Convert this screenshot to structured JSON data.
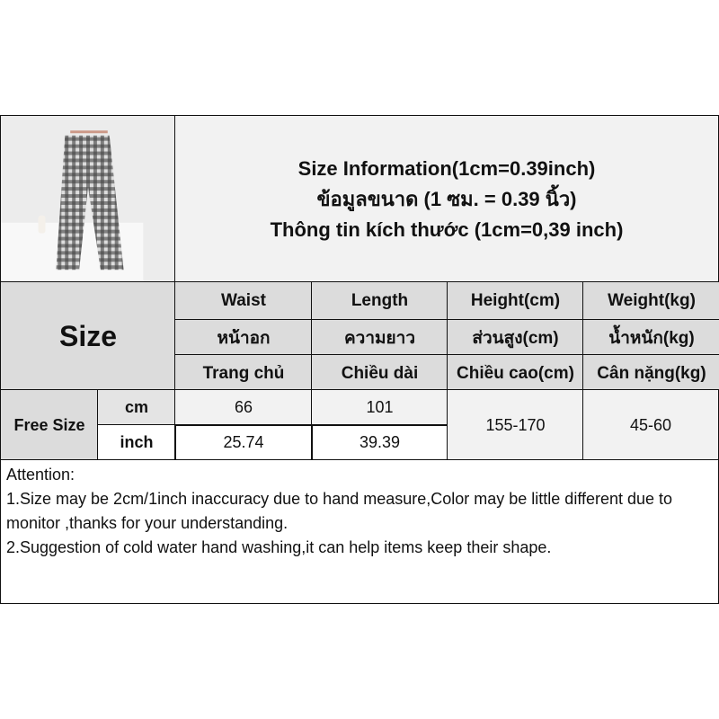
{
  "title": {
    "line1": "Size Information(1cm=0.39inch)",
    "line2": "ข้อมูลขนาด (1 ซม. = 0.39 นิ้ว)",
    "line3": "Thông tin kích thước (1cm=0,39 inch)"
  },
  "table": {
    "size_label": "Size",
    "columns": [
      {
        "en": "Waist",
        "th": "หน้าอก",
        "vi": "Trang chủ"
      },
      {
        "en": "Length",
        "th": "ความยาว",
        "vi": "Chiều dài"
      },
      {
        "en": "Height(cm)",
        "th": "ส่วนสูง(cm)",
        "vi": "Chiều cao(cm)"
      },
      {
        "en": "Weight(kg)",
        "th": "น้ำหนัก(kg)",
        "vi": "Cân nặng(kg)"
      }
    ],
    "row": {
      "size": "Free Size",
      "unit_cm": "cm",
      "unit_inch": "inch",
      "waist_cm": "66",
      "length_cm": "101",
      "waist_inch": "25.74",
      "length_inch": "39.39",
      "height": "155-170",
      "weight": "45-60"
    }
  },
  "attention": {
    "heading": "Attention:",
    "line1": "1.Size may be 2cm/1inch inaccuracy due to hand measure,Color may be little different due to monitor ,thanks for your understanding.",
    "line2": "2.Suggestion of cold water hand washing,it can help items keep their shape."
  }
}
